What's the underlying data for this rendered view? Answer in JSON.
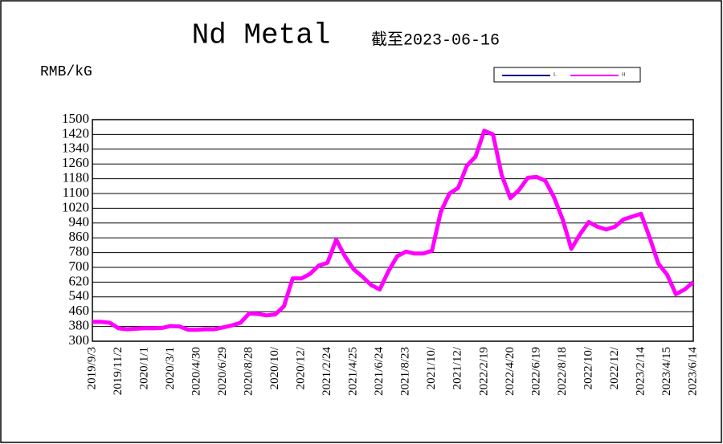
{
  "chart_data": {
    "type": "line",
    "title": "Nd Metal",
    "subtitle": "截至2023-06-16",
    "y_label": "RMB/kG",
    "categories": [
      "2019/9/3",
      null,
      null,
      "2019/11/2",
      null,
      null,
      "2020/1/1",
      null,
      null,
      "2020/3/1",
      null,
      null,
      "2020/4/30",
      null,
      null,
      "2020/6/29",
      null,
      null,
      "2020/8/28",
      null,
      null,
      "2020/10/",
      null,
      null,
      "2020/12/",
      null,
      null,
      "2021/2/24",
      null,
      null,
      "2021/4/25",
      null,
      null,
      "2021/6/24",
      null,
      null,
      "2021/8/23",
      null,
      null,
      "2021/10/",
      null,
      null,
      "2021/12/",
      null,
      null,
      "2022/2/19",
      null,
      null,
      "2022/4/20",
      null,
      null,
      "2022/6/19",
      null,
      null,
      "2022/8/18",
      null,
      null,
      "2022/10/",
      null,
      null,
      "2022/12/",
      null,
      null,
      "2023/2/14",
      null,
      null,
      "2023/4/15",
      null,
      null,
      "2023/6/14"
    ],
    "series": [
      {
        "name": "L",
        "color": "#000080",
        "values": [
          405,
          405,
          400,
          370,
          365,
          368,
          370,
          370,
          372,
          382,
          380,
          362,
          362,
          365,
          365,
          375,
          385,
          400,
          450,
          448,
          440,
          445,
          490,
          640,
          640,
          665,
          710,
          725,
          850,
          760,
          690,
          650,
          605,
          580,
          680,
          760,
          785,
          775,
          775,
          790,
          1000,
          1100,
          1130,
          1250,
          1300,
          1440,
          1420,
          1200,
          1075,
          1120,
          1185,
          1190,
          1170,
          1080,
          960,
          800,
          880,
          945,
          920,
          905,
          920,
          960,
          975,
          990,
          860,
          720,
          660,
          555,
          580,
          620
        ]
      },
      {
        "name": "H",
        "color": "#ff00ff",
        "values": [
          405,
          405,
          400,
          370,
          365,
          368,
          370,
          370,
          372,
          382,
          380,
          362,
          362,
          365,
          365,
          375,
          385,
          400,
          450,
          448,
          440,
          445,
          490,
          640,
          640,
          665,
          710,
          725,
          850,
          760,
          690,
          650,
          605,
          580,
          680,
          760,
          785,
          775,
          775,
          790,
          1000,
          1100,
          1130,
          1250,
          1300,
          1440,
          1420,
          1200,
          1075,
          1120,
          1185,
          1190,
          1170,
          1080,
          960,
          800,
          880,
          945,
          920,
          905,
          920,
          960,
          975,
          990,
          860,
          720,
          660,
          555,
          580,
          620
        ]
      }
    ],
    "ylim": [
      300,
      1500
    ],
    "yticks": [
      300,
      380,
      460,
      540,
      620,
      700,
      780,
      860,
      940,
      1020,
      1100,
      1180,
      1260,
      1340,
      1420,
      1500
    ],
    "grid": true
  }
}
